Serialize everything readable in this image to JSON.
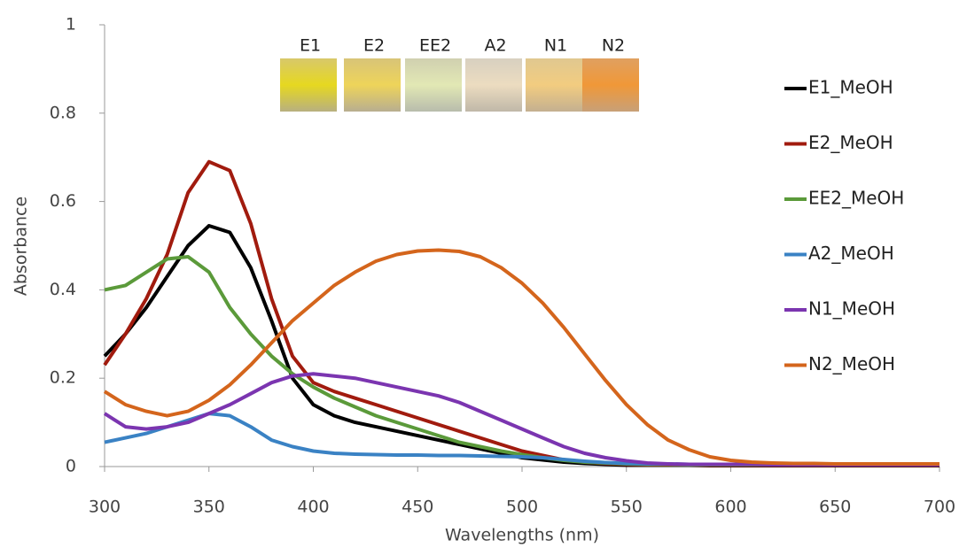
{
  "chart_data": {
    "type": "line",
    "y_label": "Absorbance",
    "x_label": "Wavelengths (nm)",
    "vial_labels": [
      "E1",
      "E2",
      "EE2",
      "A2",
      "N1",
      "N2"
    ],
    "x": [
      300,
      310,
      320,
      330,
      340,
      350,
      360,
      370,
      380,
      390,
      400,
      410,
      420,
      430,
      440,
      450,
      460,
      470,
      480,
      490,
      500,
      510,
      520,
      530,
      540,
      550,
      560,
      570,
      580,
      590,
      600,
      610,
      620,
      630,
      640,
      650,
      660,
      670,
      680,
      690,
      700
    ],
    "series": [
      {
        "name": "E1_MeOH",
        "color": "#000000",
        "values": [
          0.25,
          0.3,
          0.36,
          0.43,
          0.5,
          0.545,
          0.53,
          0.45,
          0.33,
          0.2,
          0.14,
          0.115,
          0.1,
          0.09,
          0.08,
          0.07,
          0.06,
          0.05,
          0.04,
          0.03,
          0.02,
          0.015,
          0.01,
          0.007,
          0.005,
          0.003,
          0.003,
          0.003,
          0.003,
          0.002,
          0.002,
          0.002,
          0.002,
          0.002,
          0.002,
          0.002,
          0.002,
          0.002,
          0.002,
          0.002,
          0.002
        ]
      },
      {
        "name": "E2_MeOH",
        "color": "#a11b0e",
        "values": [
          0.23,
          0.3,
          0.38,
          0.48,
          0.62,
          0.69,
          0.67,
          0.55,
          0.38,
          0.25,
          0.19,
          0.17,
          0.155,
          0.14,
          0.125,
          0.11,
          0.095,
          0.08,
          0.065,
          0.05,
          0.035,
          0.025,
          0.015,
          0.01,
          0.007,
          0.005,
          0.004,
          0.004,
          0.004,
          0.003,
          0.003,
          0.003,
          0.003,
          0.003,
          0.003,
          0.003,
          0.003,
          0.003,
          0.003,
          0.003,
          0.003
        ]
      },
      {
        "name": "EE2_MeOH",
        "color": "#5b9a3a",
        "values": [
          0.4,
          0.41,
          0.44,
          0.47,
          0.475,
          0.44,
          0.36,
          0.3,
          0.25,
          0.21,
          0.18,
          0.155,
          0.135,
          0.115,
          0.1,
          0.085,
          0.07,
          0.055,
          0.045,
          0.035,
          0.027,
          0.02,
          0.014,
          0.01,
          0.008,
          0.006,
          0.005,
          0.005,
          0.004,
          0.004,
          0.004,
          0.004,
          0.004,
          0.004,
          0.004,
          0.004,
          0.004,
          0.004,
          0.004,
          0.004,
          0.004
        ]
      },
      {
        "name": "A2_MeOH",
        "color": "#3a82c4",
        "values": [
          0.055,
          0.065,
          0.075,
          0.09,
          0.105,
          0.12,
          0.115,
          0.09,
          0.06,
          0.045,
          0.035,
          0.03,
          0.028,
          0.027,
          0.026,
          0.026,
          0.025,
          0.025,
          0.024,
          0.023,
          0.022,
          0.02,
          0.016,
          0.012,
          0.009,
          0.007,
          0.006,
          0.006,
          0.005,
          0.005,
          0.005,
          0.005,
          0.005,
          0.005,
          0.005,
          0.005,
          0.005,
          0.005,
          0.005,
          0.005,
          0.005
        ]
      },
      {
        "name": "N1_MeOH",
        "color": "#7b35b0",
        "values": [
          0.12,
          0.09,
          0.085,
          0.09,
          0.1,
          0.12,
          0.14,
          0.165,
          0.19,
          0.205,
          0.21,
          0.205,
          0.2,
          0.19,
          0.18,
          0.17,
          0.16,
          0.145,
          0.125,
          0.105,
          0.085,
          0.065,
          0.045,
          0.03,
          0.02,
          0.013,
          0.008,
          0.006,
          0.005,
          0.005,
          0.005,
          0.005,
          0.004,
          0.004,
          0.004,
          0.004,
          0.004,
          0.004,
          0.004,
          0.004,
          0.004
        ]
      },
      {
        "name": "N2_MeOH",
        "color": "#d4651c",
        "values": [
          0.17,
          0.14,
          0.125,
          0.115,
          0.125,
          0.15,
          0.185,
          0.23,
          0.28,
          0.33,
          0.37,
          0.41,
          0.44,
          0.465,
          0.48,
          0.488,
          0.49,
          0.487,
          0.475,
          0.45,
          0.415,
          0.37,
          0.315,
          0.255,
          0.195,
          0.14,
          0.095,
          0.06,
          0.038,
          0.022,
          0.014,
          0.01,
          0.008,
          0.007,
          0.007,
          0.006,
          0.006,
          0.006,
          0.006,
          0.006,
          0.006
        ]
      }
    ],
    "xlim": [
      300,
      700
    ],
    "xticks": [
      300,
      350,
      400,
      450,
      500,
      550,
      600,
      650,
      700
    ],
    "ylim": [
      0,
      1
    ],
    "yticks": [
      0,
      0.2,
      0.4,
      0.6,
      0.8,
      1
    ],
    "legend": "right"
  }
}
